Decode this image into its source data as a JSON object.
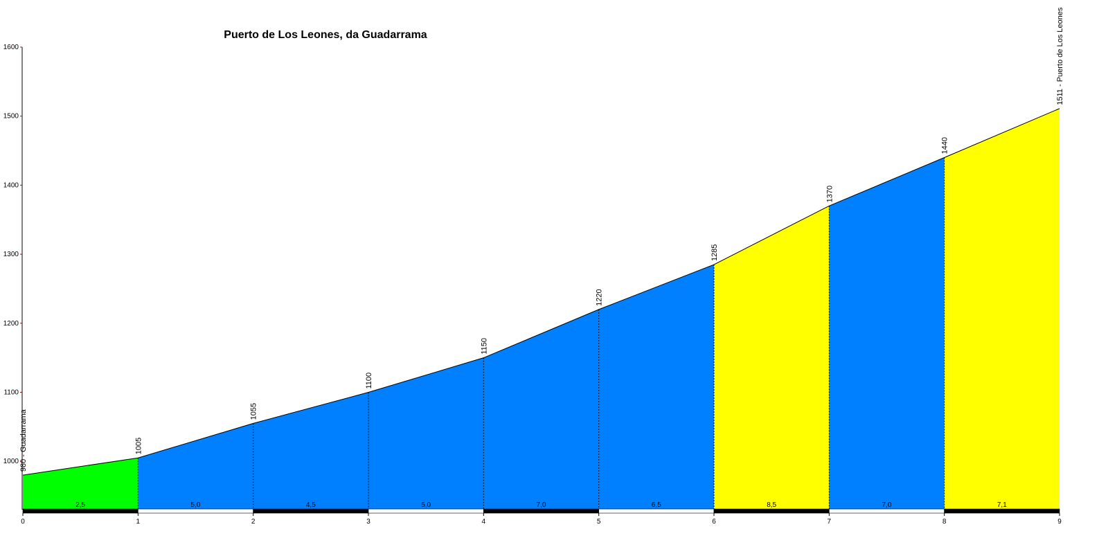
{
  "chart_data": {
    "type": "area",
    "title": "Puerto de Los Leones, da Guadarrama",
    "xlabel": "",
    "ylabel": "",
    "xlim": [
      0,
      9
    ],
    "ylim": [
      930,
      1600
    ],
    "x_ticks": [
      0,
      1,
      2,
      3,
      4,
      5,
      6,
      7,
      8,
      9
    ],
    "y_ticks": [
      1000,
      1100,
      1200,
      1300,
      1400,
      1500,
      1600
    ],
    "x": [
      0,
      1,
      2,
      3,
      4,
      5,
      6,
      7,
      8,
      9
    ],
    "elevation": [
      980,
      1005,
      1055,
      1100,
      1150,
      1220,
      1285,
      1370,
      1440,
      1511
    ],
    "elevation_labels": [
      "980 - Guadarrama",
      "1005",
      "1055",
      "1100",
      "1150",
      "1220",
      "1285",
      "1370",
      "1440",
      "1511 - Puerto de Los Leones"
    ],
    "segments": [
      {
        "grade": "2,5",
        "color": "#00ff00"
      },
      {
        "grade": "5,0",
        "color": "#0080ff"
      },
      {
        "grade": "4,5",
        "color": "#0080ff"
      },
      {
        "grade": "5,0",
        "color": "#0080ff"
      },
      {
        "grade": "7,0",
        "color": "#0080ff"
      },
      {
        "grade": "6,5",
        "color": "#0080ff"
      },
      {
        "grade": "8,5",
        "color": "#ffff00"
      },
      {
        "grade": "7,0",
        "color": "#0080ff"
      },
      {
        "grade": "7,1",
        "color": "#ffff00"
      }
    ],
    "grid": false
  }
}
